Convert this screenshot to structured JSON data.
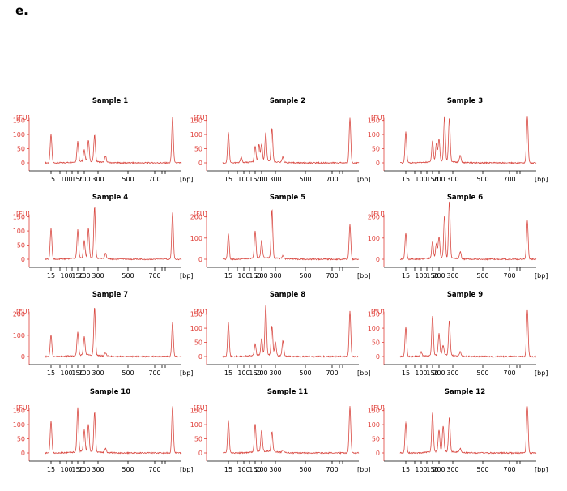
{
  "panel_label": "e.",
  "chart_data": [
    {
      "type": "line",
      "title": "Sample 1",
      "ylabel": "[FU]",
      "xlabel": "[bp]",
      "yticks": [
        0,
        50,
        100,
        150
      ],
      "ylim": [
        -10,
        170
      ],
      "xticks": [
        "15",
        "100",
        "150",
        "200",
        "300",
        "500",
        "700"
      ],
      "peaks": [
        [
          15,
          100
        ],
        [
          150,
          72
        ],
        [
          200,
          40
        ],
        [
          230,
          75
        ],
        [
          275,
          93
        ],
        [
          350,
          22
        ],
        [
          1500,
          160
        ]
      ]
    },
    {
      "type": "line",
      "title": "Sample 2",
      "ylabel": "[FU]",
      "xlabel": "[bp]",
      "yticks": [
        0,
        50,
        100,
        150
      ],
      "ylim": [
        -10,
        170
      ],
      "xticks": [
        "15",
        "100",
        "150",
        "200",
        "300",
        "500",
        "700"
      ],
      "peaks": [
        [
          15,
          108
        ],
        [
          80,
          20
        ],
        [
          150,
          55
        ],
        [
          180,
          60
        ],
        [
          200,
          60
        ],
        [
          230,
          100
        ],
        [
          275,
          120
        ],
        [
          350,
          20
        ],
        [
          1500,
          160
        ]
      ]
    },
    {
      "type": "line",
      "title": "Sample 3",
      "ylabel": "[FU]",
      "xlabel": "[bp]",
      "yticks": [
        0,
        50,
        100,
        150
      ],
      "ylim": [
        -10,
        170
      ],
      "xticks": [
        "15",
        "100",
        "150",
        "200",
        "300",
        "500",
        "700"
      ],
      "peaks": [
        [
          15,
          110
        ],
        [
          150,
          75
        ],
        [
          180,
          65
        ],
        [
          200,
          80
        ],
        [
          240,
          160
        ],
        [
          275,
          155
        ],
        [
          350,
          25
        ],
        [
          1500,
          165
        ]
      ]
    },
    {
      "type": "line",
      "title": "Sample 4",
      "ylabel": "[FU]",
      "xlabel": "[bp]",
      "yticks": [
        0,
        50,
        100,
        150
      ],
      "ylim": [
        -10,
        190
      ],
      "xticks": [
        "15",
        "100",
        "150",
        "200",
        "300",
        "500",
        "700"
      ],
      "peaks": [
        [
          15,
          110
        ],
        [
          150,
          100
        ],
        [
          200,
          60
        ],
        [
          230,
          105
        ],
        [
          275,
          180
        ],
        [
          350,
          20
        ],
        [
          1500,
          165
        ]
      ]
    },
    {
      "type": "line",
      "title": "Sample 5",
      "ylabel": "[FU]",
      "xlabel": "[bp]",
      "yticks": [
        0,
        100,
        200
      ],
      "ylim": [
        -15,
        240
      ],
      "xticks": [
        "15",
        "100",
        "150",
        "200",
        "300",
        "500",
        "700"
      ],
      "peaks": [
        [
          15,
          120
        ],
        [
          150,
          130
        ],
        [
          200,
          80
        ],
        [
          275,
          230
        ],
        [
          350,
          15
        ],
        [
          1500,
          165
        ]
      ]
    },
    {
      "type": "line",
      "title": "Sample 6",
      "ylabel": "[FU]",
      "xlabel": "[bp]",
      "yticks": [
        0,
        100,
        200
      ],
      "ylim": [
        -15,
        280
      ],
      "xticks": [
        "15",
        "100",
        "150",
        "200",
        "300",
        "500",
        "700"
      ],
      "peaks": [
        [
          15,
          125
        ],
        [
          150,
          80
        ],
        [
          180,
          70
        ],
        [
          200,
          100
        ],
        [
          240,
          200
        ],
        [
          275,
          270
        ],
        [
          350,
          35
        ],
        [
          1500,
          180
        ]
      ]
    },
    {
      "type": "line",
      "title": "Sample 7",
      "ylabel": "[FU]",
      "xlabel": "[bp]",
      "yticks": [
        0,
        100,
        200
      ],
      "ylim": [
        -15,
        240
      ],
      "xticks": [
        "15",
        "100",
        "150",
        "200",
        "300",
        "500",
        "700"
      ],
      "peaks": [
        [
          15,
          100
        ],
        [
          150,
          110
        ],
        [
          200,
          85
        ],
        [
          275,
          225
        ],
        [
          350,
          15
        ],
        [
          1500,
          160
        ]
      ]
    },
    {
      "type": "line",
      "title": "Sample 8",
      "ylabel": "[FU]",
      "xlabel": "[bp]",
      "yticks": [
        0,
        50,
        100,
        150
      ],
      "ylim": [
        -10,
        190
      ],
      "xticks": [
        "15",
        "100",
        "150",
        "200",
        "300",
        "500",
        "700"
      ],
      "peaks": [
        [
          15,
          120
        ],
        [
          150,
          40
        ],
        [
          200,
          60
        ],
        [
          230,
          175
        ],
        [
          275,
          105
        ],
        [
          300,
          50
        ],
        [
          350,
          55
        ],
        [
          1500,
          160
        ]
      ]
    },
    {
      "type": "line",
      "title": "Sample 9",
      "ylabel": "[FU]",
      "xlabel": "[bp]",
      "yticks": [
        0,
        50,
        100,
        150
      ],
      "ylim": [
        -10,
        180
      ],
      "xticks": [
        "15",
        "100",
        "150",
        "200",
        "300",
        "500",
        "700"
      ],
      "peaks": [
        [
          15,
          105
        ],
        [
          100,
          15
        ],
        [
          150,
          140
        ],
        [
          200,
          75
        ],
        [
          230,
          35
        ],
        [
          275,
          125
        ],
        [
          350,
          15
        ],
        [
          1500,
          165
        ]
      ]
    },
    {
      "type": "line",
      "title": "Sample 10",
      "ylabel": "[FU]",
      "xlabel": "[bp]",
      "yticks": [
        0,
        50,
        100,
        150
      ],
      "ylim": [
        -10,
        180
      ],
      "xticks": [
        "15",
        "100",
        "150",
        "200",
        "300",
        "500",
        "700"
      ],
      "peaks": [
        [
          15,
          112
        ],
        [
          150,
          155
        ],
        [
          200,
          75
        ],
        [
          230,
          95
        ],
        [
          275,
          140
        ],
        [
          350,
          15
        ],
        [
          1500,
          165
        ]
      ]
    },
    {
      "type": "line",
      "title": "Sample 11",
      "ylabel": "[FU]",
      "xlabel": "[bp]",
      "yticks": [
        0,
        50,
        100,
        150
      ],
      "ylim": [
        -10,
        180
      ],
      "xticks": [
        "15",
        "100",
        "150",
        "200",
        "300",
        "500",
        "700"
      ],
      "peaks": [
        [
          15,
          115
        ],
        [
          150,
          100
        ],
        [
          200,
          75
        ],
        [
          275,
          70
        ],
        [
          350,
          10
        ],
        [
          1500,
          165
        ]
      ]
    },
    {
      "type": "line",
      "title": "Sample 12",
      "ylabel": "[FU]",
      "xlabel": "[bp]",
      "yticks": [
        0,
        50,
        100,
        150
      ],
      "ylim": [
        -10,
        180
      ],
      "xticks": [
        "15",
        "100",
        "150",
        "200",
        "300",
        "500",
        "700"
      ],
      "peaks": [
        [
          15,
          110
        ],
        [
          150,
          140
        ],
        [
          200,
          75
        ],
        [
          230,
          90
        ],
        [
          275,
          120
        ],
        [
          350,
          15
        ],
        [
          1500,
          165
        ]
      ]
    }
  ]
}
